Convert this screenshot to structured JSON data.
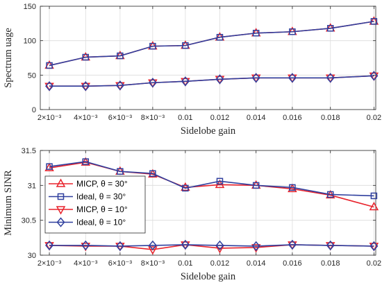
{
  "chart_data": [
    {
      "type": "line",
      "xlabel": "Sidelobe gain",
      "ylabel": "Spectrum uage",
      "x": [
        0.0021,
        0.0041,
        0.006,
        0.0078,
        0.0096,
        0.0115,
        0.0135,
        0.0155,
        0.0176,
        0.02
      ],
      "xlim": [
        0.0016,
        0.0201
      ],
      "ylim": [
        0,
        150
      ],
      "yticks": [
        0,
        50,
        100,
        150
      ],
      "xtick_labels": [
        "2×10⁻³",
        "4×10⁻³",
        "6×10⁻³",
        "8×10⁻³",
        "0.01",
        "0.012",
        "0.014",
        "0.016",
        "0.018",
        "0.02"
      ],
      "grid": true,
      "series": [
        {
          "name": "MICP, θ = 30°",
          "color": "#e8222b",
          "marker": "triangle-up",
          "values": [
            64,
            76,
            78,
            92,
            93,
            105,
            111,
            113,
            118,
            128
          ]
        },
        {
          "name": "Ideal, θ = 30°",
          "color": "#2f3f9e",
          "marker": "square",
          "values": [
            64,
            76,
            78,
            92,
            93,
            105,
            111,
            113,
            118,
            128
          ]
        },
        {
          "name": "MICP, θ = 10°",
          "color": "#e8222b",
          "marker": "triangle-down",
          "values": [
            34,
            34,
            35,
            39,
            41,
            44,
            46,
            46,
            46,
            49
          ]
        },
        {
          "name": "Ideal, θ = 10°",
          "color": "#2f3f9e",
          "marker": "diamond",
          "values": [
            34,
            34,
            35,
            39,
            41,
            44,
            46,
            46,
            46,
            49
          ]
        }
      ]
    },
    {
      "type": "line",
      "xlabel": "Sidelobe gain",
      "ylabel": "Minimum SINR",
      "x": [
        0.0021,
        0.0041,
        0.006,
        0.0078,
        0.0096,
        0.0115,
        0.0135,
        0.0155,
        0.0176,
        0.02
      ],
      "xlim": [
        0.0016,
        0.0201
      ],
      "ylim": [
        30,
        31.5
      ],
      "yticks": [
        30,
        30.5,
        31,
        31.5
      ],
      "xtick_labels": [
        "2×10⁻³",
        "4×10⁻³",
        "6×10⁻³",
        "8×10⁻³",
        "0.01",
        "0.012",
        "0.014",
        "0.016",
        "0.018",
        "0.02"
      ],
      "grid": true,
      "legend": "left",
      "series": [
        {
          "name": "MICP, θ = 30°",
          "color": "#e8222b",
          "marker": "triangle-up",
          "values": [
            31.25,
            31.33,
            31.2,
            31.16,
            30.97,
            31.01,
            31.0,
            30.95,
            30.86,
            30.69
          ]
        },
        {
          "name": "Ideal, θ = 30°",
          "color": "#2f3f9e",
          "marker": "square",
          "values": [
            31.27,
            31.34,
            31.2,
            31.17,
            30.96,
            31.06,
            31.0,
            30.97,
            30.87,
            30.85
          ]
        },
        {
          "name": "MICP, θ = 10°",
          "color": "#e8222b",
          "marker": "triangle-down",
          "values": [
            30.14,
            30.13,
            30.13,
            30.08,
            30.15,
            30.1,
            30.11,
            30.15,
            30.14,
            30.13
          ]
        },
        {
          "name": "Ideal, θ = 10°",
          "color": "#2f3f9e",
          "marker": "diamond",
          "values": [
            30.14,
            30.14,
            30.13,
            30.14,
            30.15,
            30.14,
            30.13,
            30.15,
            30.14,
            30.13
          ]
        }
      ]
    }
  ]
}
